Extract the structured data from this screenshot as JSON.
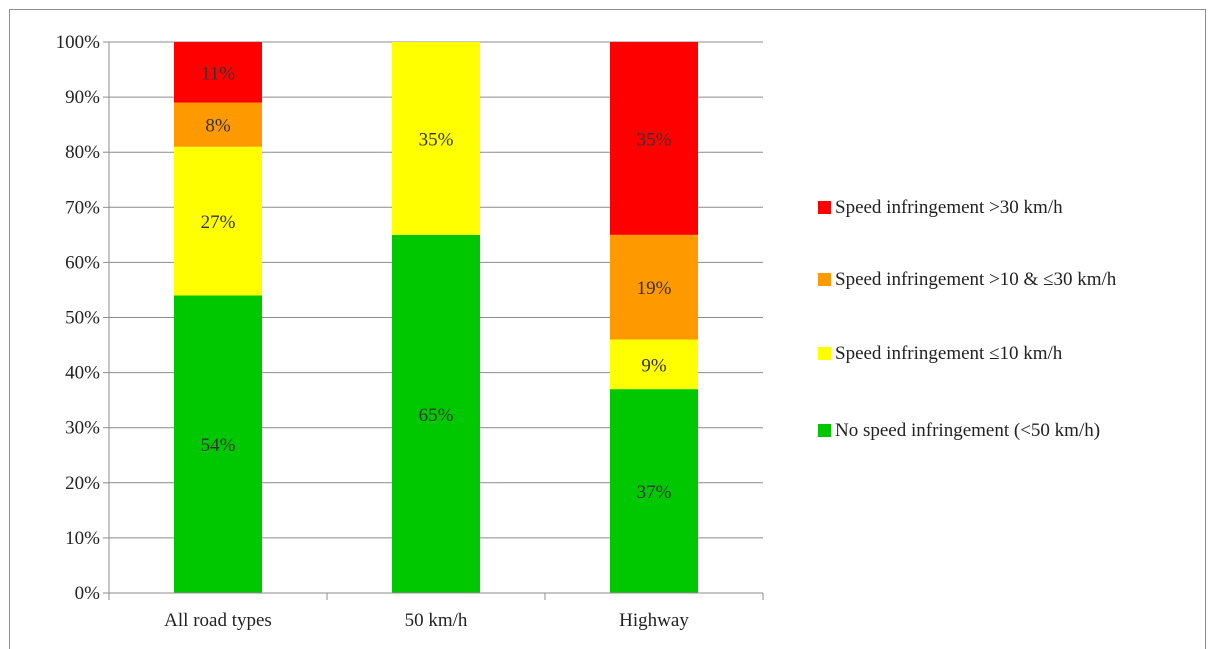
{
  "chart_data": {
    "type": "bar",
    "stacked": true,
    "title": "",
    "xlabel": "",
    "ylabel": "",
    "categories": [
      "All road types",
      "50 km/h",
      "Highway"
    ],
    "ylim": [
      0,
      100
    ],
    "yticks": [
      "0%",
      "10%",
      "20%",
      "30%",
      "40%",
      "50%",
      "60%",
      "70%",
      "80%",
      "90%",
      "100%"
    ],
    "grid": true,
    "legend_position": "right",
    "series": [
      {
        "name": "No speed infringement (<50 km/h)",
        "color": "#00c800",
        "values": [
          54,
          65,
          37
        ],
        "labels": [
          "54%",
          "65%",
          "37%"
        ]
      },
      {
        "name": "Speed infringement ≤10 km/h",
        "color": "#ffff00",
        "values": [
          27,
          35,
          9
        ],
        "labels": [
          "27%",
          "35%",
          "9%"
        ]
      },
      {
        "name": "Speed infringement >10 & ≤30 km/h",
        "color": "#ff9900",
        "values": [
          8,
          0,
          19
        ],
        "labels": [
          "8%",
          "",
          "19%"
        ]
      },
      {
        "name": "Speed infringement >30 km/h",
        "color": "#ff0000",
        "values": [
          11,
          0,
          35
        ],
        "labels": [
          "11%",
          "",
          "35%"
        ]
      }
    ]
  }
}
